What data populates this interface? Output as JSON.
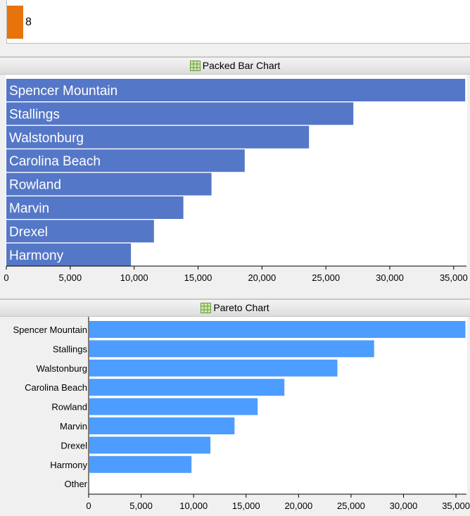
{
  "top_strip": {
    "value": "8",
    "color": "#e8730a"
  },
  "packed": {
    "header": "Packed Bar Chart",
    "icon": "grid-table-icon",
    "chart_data": {
      "type": "bar",
      "orientation": "horizontal",
      "title": "",
      "categories": [
        "Spencer Mountain",
        "Stallings",
        "Walstonburg",
        "Carolina Beach",
        "Rowland",
        "Marvin",
        "Drexel",
        "Harmony"
      ],
      "values": [
        35900,
        27150,
        23680,
        18650,
        16050,
        13850,
        11550,
        9750
      ],
      "xlim": [
        0,
        36000
      ],
      "ticks": [
        0,
        5000,
        10000,
        15000,
        20000,
        25000,
        30000,
        35000
      ],
      "tick_labels": [
        "0",
        "5,000",
        "10,000",
        "15,000",
        "20,000",
        "25,000",
        "30,000",
        "35,000"
      ],
      "bar_color": "#5577c7",
      "labels_inside": true
    }
  },
  "pareto": {
    "header": "Pareto Chart",
    "icon": "grid-table-icon",
    "chart_data": {
      "type": "bar",
      "orientation": "horizontal",
      "title": "",
      "categories": [
        "Spencer Mountain",
        "Stallings",
        "Walstonburg",
        "Carolina Beach",
        "Rowland",
        "Marvin",
        "Drexel",
        "Harmony",
        "Other"
      ],
      "values": [
        35900,
        27200,
        23700,
        18650,
        16100,
        13900,
        11600,
        9800,
        0
      ],
      "xlim": [
        0,
        36000
      ],
      "ticks": [
        0,
        5000,
        10000,
        15000,
        20000,
        25000,
        30000,
        35000
      ],
      "tick_labels": [
        "0",
        "5,000",
        "10,000",
        "15,000",
        "20,000",
        "25,000",
        "30,000",
        "35,000"
      ],
      "bar_color": "#4d9cff"
    }
  }
}
